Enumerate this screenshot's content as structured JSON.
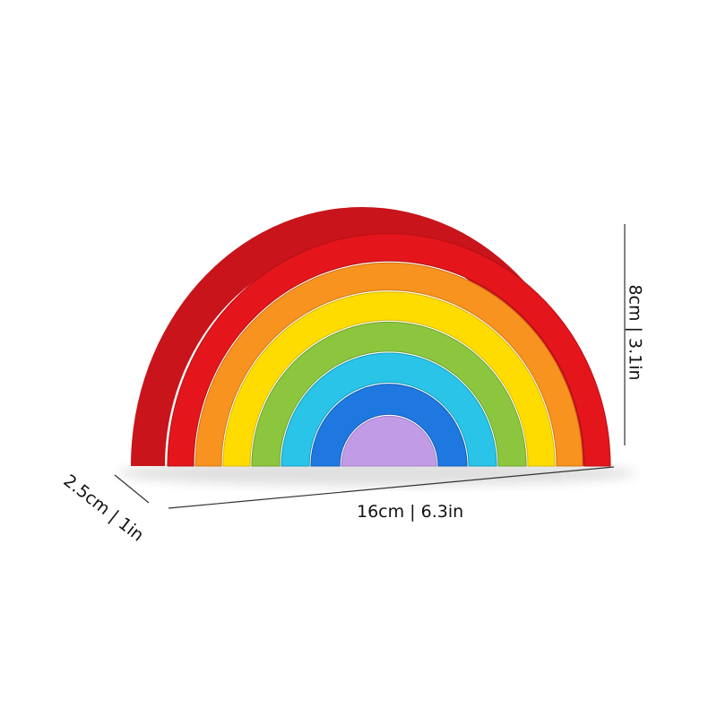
{
  "dimensions": {
    "height": "8cm | 3.1in",
    "width": "16cm | 6.3in",
    "depth": "2.5cm | 1in"
  },
  "colors": {
    "red": "#e4161b",
    "orange": "#f7931e",
    "yellow": "#ffdc00",
    "green": "#8cc63f",
    "cyan": "#29c4e8",
    "blue": "#1e78e0",
    "purple": "#c29be6"
  }
}
